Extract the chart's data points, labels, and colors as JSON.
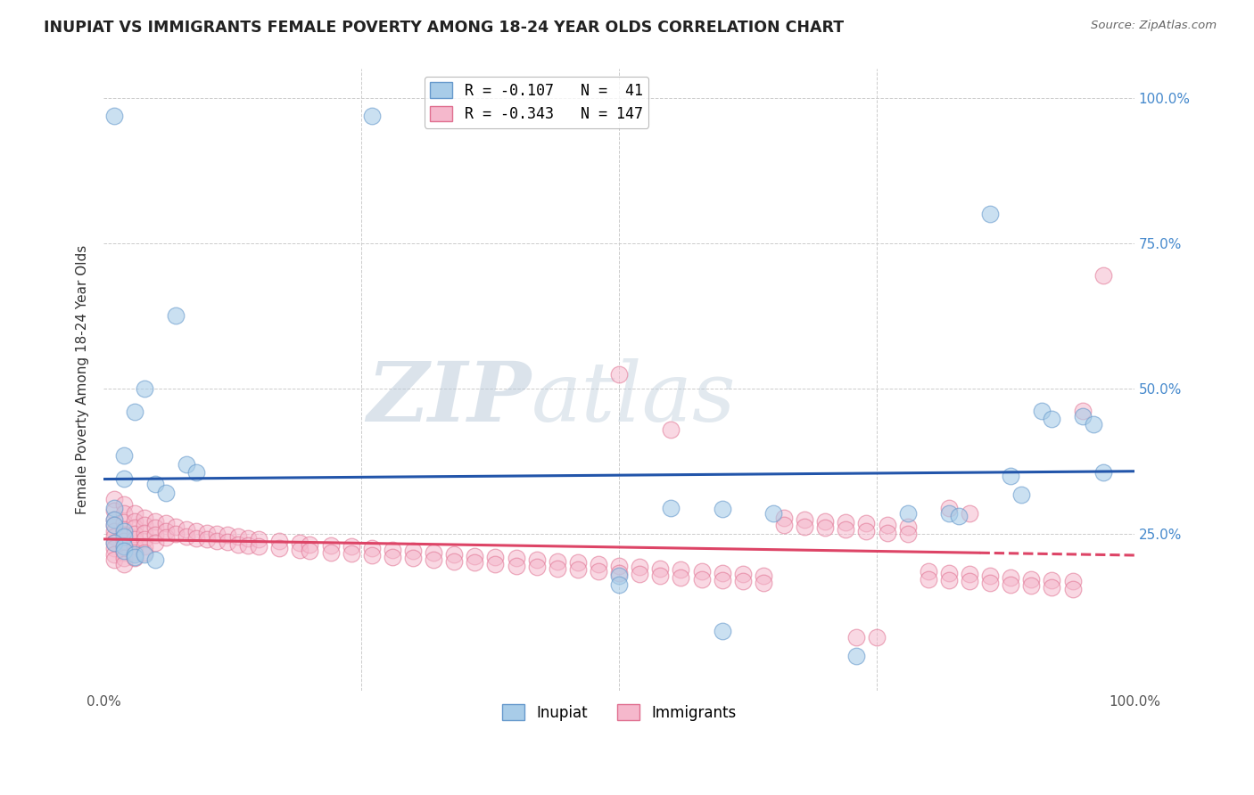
{
  "title": "INUPIAT VS IMMIGRANTS FEMALE POVERTY AMONG 18-24 YEAR OLDS CORRELATION CHART",
  "source": "Source: ZipAtlas.com",
  "ylabel": "Female Poverty Among 18-24 Year Olds",
  "xlim": [
    0,
    1.0
  ],
  "ylim": [
    -0.02,
    1.05
  ],
  "inupiat_R": -0.107,
  "inupiat_N": 41,
  "immigrants_R": -0.343,
  "immigrants_N": 147,
  "legend_label_inupiat": "Inupiat",
  "legend_label_immigrants": "Immigrants",
  "inupiat_color": "#a8cce8",
  "immigrants_color": "#f5b8cc",
  "inupiat_edge_color": "#6699cc",
  "immigrants_edge_color": "#e07090",
  "inupiat_line_color": "#2255aa",
  "immigrants_line_color": "#dd4466",
  "watermark_color": "#ccd8e8",
  "background_color": "#ffffff",
  "grid_color": "#cccccc",
  "ytick_positions": [
    0.0,
    0.25,
    0.5,
    0.75,
    1.0
  ],
  "ytick_labels": [
    "",
    "25.0%",
    "50.0%",
    "75.0%",
    "100.0%"
  ],
  "xtick_positions": [
    0.0,
    0.25,
    0.5,
    0.75,
    1.0
  ],
  "xtick_labels": [
    "0.0%",
    "",
    "",
    "",
    "100.0%"
  ],
  "inupiat_points": [
    [
      0.01,
      0.97
    ],
    [
      0.26,
      0.97
    ],
    [
      0.04,
      0.5
    ],
    [
      0.03,
      0.46
    ],
    [
      0.02,
      0.385
    ],
    [
      0.02,
      0.345
    ],
    [
      0.05,
      0.335
    ],
    [
      0.06,
      0.32
    ],
    [
      0.01,
      0.295
    ],
    [
      0.01,
      0.275
    ],
    [
      0.01,
      0.265
    ],
    [
      0.02,
      0.255
    ],
    [
      0.02,
      0.245
    ],
    [
      0.01,
      0.235
    ],
    [
      0.02,
      0.228
    ],
    [
      0.02,
      0.22
    ],
    [
      0.03,
      0.215
    ],
    [
      0.03,
      0.21
    ],
    [
      0.07,
      0.625
    ],
    [
      0.08,
      0.37
    ],
    [
      0.09,
      0.355
    ],
    [
      0.04,
      0.215
    ],
    [
      0.05,
      0.205
    ],
    [
      0.5,
      0.178
    ],
    [
      0.5,
      0.163
    ],
    [
      0.55,
      0.295
    ],
    [
      0.6,
      0.292
    ],
    [
      0.65,
      0.285
    ],
    [
      0.78,
      0.285
    ],
    [
      0.82,
      0.285
    ],
    [
      0.83,
      0.28
    ],
    [
      0.88,
      0.35
    ],
    [
      0.89,
      0.318
    ],
    [
      0.91,
      0.462
    ],
    [
      0.92,
      0.448
    ],
    [
      0.95,
      0.452
    ],
    [
      0.96,
      0.438
    ],
    [
      0.97,
      0.355
    ],
    [
      0.6,
      0.082
    ],
    [
      0.73,
      0.04
    ],
    [
      0.86,
      0.8
    ]
  ],
  "immigrants_points": [
    [
      0.01,
      0.31
    ],
    [
      0.01,
      0.29
    ],
    [
      0.01,
      0.275
    ],
    [
      0.01,
      0.265
    ],
    [
      0.01,
      0.255
    ],
    [
      0.01,
      0.245
    ],
    [
      0.01,
      0.235
    ],
    [
      0.01,
      0.225
    ],
    [
      0.01,
      0.215
    ],
    [
      0.01,
      0.205
    ],
    [
      0.02,
      0.3
    ],
    [
      0.02,
      0.285
    ],
    [
      0.02,
      0.27
    ],
    [
      0.02,
      0.258
    ],
    [
      0.02,
      0.248
    ],
    [
      0.02,
      0.238
    ],
    [
      0.02,
      0.228
    ],
    [
      0.02,
      0.218
    ],
    [
      0.02,
      0.208
    ],
    [
      0.02,
      0.198
    ],
    [
      0.03,
      0.285
    ],
    [
      0.03,
      0.272
    ],
    [
      0.03,
      0.26
    ],
    [
      0.03,
      0.25
    ],
    [
      0.03,
      0.24
    ],
    [
      0.03,
      0.228
    ],
    [
      0.03,
      0.218
    ],
    [
      0.03,
      0.208
    ],
    [
      0.04,
      0.278
    ],
    [
      0.04,
      0.265
    ],
    [
      0.04,
      0.252
    ],
    [
      0.04,
      0.24
    ],
    [
      0.04,
      0.228
    ],
    [
      0.04,
      0.218
    ],
    [
      0.05,
      0.272
    ],
    [
      0.05,
      0.26
    ],
    [
      0.05,
      0.248
    ],
    [
      0.05,
      0.235
    ],
    [
      0.06,
      0.268
    ],
    [
      0.06,
      0.255
    ],
    [
      0.06,
      0.243
    ],
    [
      0.07,
      0.262
    ],
    [
      0.07,
      0.25
    ],
    [
      0.08,
      0.258
    ],
    [
      0.08,
      0.245
    ],
    [
      0.09,
      0.255
    ],
    [
      0.09,
      0.242
    ],
    [
      0.1,
      0.252
    ],
    [
      0.1,
      0.24
    ],
    [
      0.11,
      0.25
    ],
    [
      0.11,
      0.238
    ],
    [
      0.12,
      0.248
    ],
    [
      0.12,
      0.236
    ],
    [
      0.13,
      0.245
    ],
    [
      0.13,
      0.232
    ],
    [
      0.14,
      0.242
    ],
    [
      0.14,
      0.23
    ],
    [
      0.15,
      0.24
    ],
    [
      0.15,
      0.228
    ],
    [
      0.17,
      0.238
    ],
    [
      0.17,
      0.225
    ],
    [
      0.19,
      0.235
    ],
    [
      0.19,
      0.222
    ],
    [
      0.2,
      0.232
    ],
    [
      0.2,
      0.22
    ],
    [
      0.22,
      0.23
    ],
    [
      0.22,
      0.218
    ],
    [
      0.24,
      0.228
    ],
    [
      0.24,
      0.216
    ],
    [
      0.26,
      0.225
    ],
    [
      0.26,
      0.213
    ],
    [
      0.28,
      0.222
    ],
    [
      0.28,
      0.21
    ],
    [
      0.3,
      0.22
    ],
    [
      0.3,
      0.208
    ],
    [
      0.32,
      0.218
    ],
    [
      0.32,
      0.205
    ],
    [
      0.34,
      0.215
    ],
    [
      0.34,
      0.202
    ],
    [
      0.36,
      0.212
    ],
    [
      0.36,
      0.2
    ],
    [
      0.38,
      0.21
    ],
    [
      0.38,
      0.198
    ],
    [
      0.4,
      0.208
    ],
    [
      0.4,
      0.195
    ],
    [
      0.42,
      0.205
    ],
    [
      0.42,
      0.193
    ],
    [
      0.44,
      0.202
    ],
    [
      0.44,
      0.19
    ],
    [
      0.46,
      0.2
    ],
    [
      0.46,
      0.188
    ],
    [
      0.48,
      0.198
    ],
    [
      0.48,
      0.185
    ],
    [
      0.5,
      0.195
    ],
    [
      0.5,
      0.182
    ],
    [
      0.52,
      0.193
    ],
    [
      0.52,
      0.18
    ],
    [
      0.54,
      0.19
    ],
    [
      0.54,
      0.178
    ],
    [
      0.56,
      0.188
    ],
    [
      0.56,
      0.175
    ],
    [
      0.58,
      0.185
    ],
    [
      0.58,
      0.172
    ],
    [
      0.6,
      0.183
    ],
    [
      0.6,
      0.17
    ],
    [
      0.62,
      0.18
    ],
    [
      0.62,
      0.168
    ],
    [
      0.64,
      0.178
    ],
    [
      0.64,
      0.165
    ],
    [
      0.5,
      0.525
    ],
    [
      0.55,
      0.43
    ],
    [
      0.66,
      0.278
    ],
    [
      0.66,
      0.265
    ],
    [
      0.68,
      0.275
    ],
    [
      0.68,
      0.262
    ],
    [
      0.7,
      0.272
    ],
    [
      0.7,
      0.26
    ],
    [
      0.72,
      0.27
    ],
    [
      0.72,
      0.258
    ],
    [
      0.74,
      0.268
    ],
    [
      0.74,
      0.255
    ],
    [
      0.76,
      0.265
    ],
    [
      0.76,
      0.252
    ],
    [
      0.78,
      0.262
    ],
    [
      0.78,
      0.25
    ],
    [
      0.8,
      0.185
    ],
    [
      0.8,
      0.172
    ],
    [
      0.82,
      0.182
    ],
    [
      0.82,
      0.17
    ],
    [
      0.84,
      0.18
    ],
    [
      0.84,
      0.168
    ],
    [
      0.86,
      0.178
    ],
    [
      0.86,
      0.165
    ],
    [
      0.88,
      0.175
    ],
    [
      0.88,
      0.163
    ],
    [
      0.9,
      0.172
    ],
    [
      0.9,
      0.16
    ],
    [
      0.92,
      0.17
    ],
    [
      0.92,
      0.158
    ],
    [
      0.94,
      0.168
    ],
    [
      0.94,
      0.155
    ],
    [
      0.95,
      0.462
    ],
    [
      0.97,
      0.695
    ],
    [
      0.73,
      0.072
    ],
    [
      0.75,
      0.072
    ],
    [
      0.82,
      0.295
    ],
    [
      0.84,
      0.285
    ]
  ]
}
